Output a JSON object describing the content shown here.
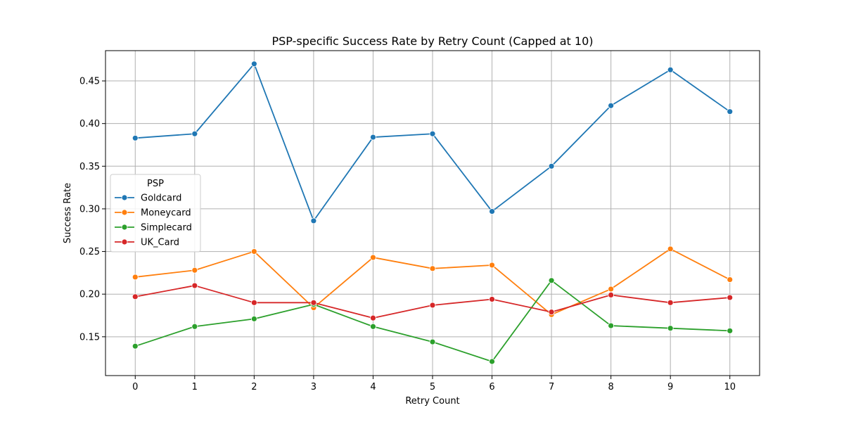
{
  "chart_data": {
    "type": "line",
    "title": "PSP-specific Success Rate by Retry Count (Capped at 10)",
    "xlabel": "Retry Count",
    "ylabel": "Success Rate",
    "x": [
      0,
      1,
      2,
      3,
      4,
      5,
      6,
      7,
      8,
      9,
      10
    ],
    "xlim": [
      -0.5,
      10.5
    ],
    "ylim": [
      0.1045,
      0.4855
    ],
    "yticks": [
      0.15,
      0.2,
      0.25,
      0.3,
      0.35,
      0.4,
      0.45
    ],
    "grid": true,
    "legend": {
      "title": "PSP",
      "placement": "center-left"
    },
    "series": [
      {
        "name": "Goldcard",
        "color": "#1f77b4",
        "values": [
          0.383,
          0.388,
          0.47,
          0.286,
          0.384,
          0.388,
          0.297,
          0.35,
          0.421,
          0.463,
          0.414
        ]
      },
      {
        "name": "Moneycard",
        "color": "#ff7f0e",
        "values": [
          0.22,
          0.228,
          0.25,
          0.184,
          0.243,
          0.23,
          0.234,
          0.176,
          0.206,
          0.253,
          0.217
        ]
      },
      {
        "name": "Simplecard",
        "color": "#2ca02c",
        "values": [
          0.139,
          0.162,
          0.171,
          0.188,
          0.162,
          0.144,
          0.121,
          0.216,
          0.163,
          0.16,
          0.157
        ]
      },
      {
        "name": "UK_Card",
        "color": "#d62728",
        "values": [
          0.197,
          0.21,
          0.19,
          0.19,
          0.172,
          0.187,
          0.194,
          0.179,
          0.199,
          0.19,
          0.196
        ]
      }
    ]
  }
}
